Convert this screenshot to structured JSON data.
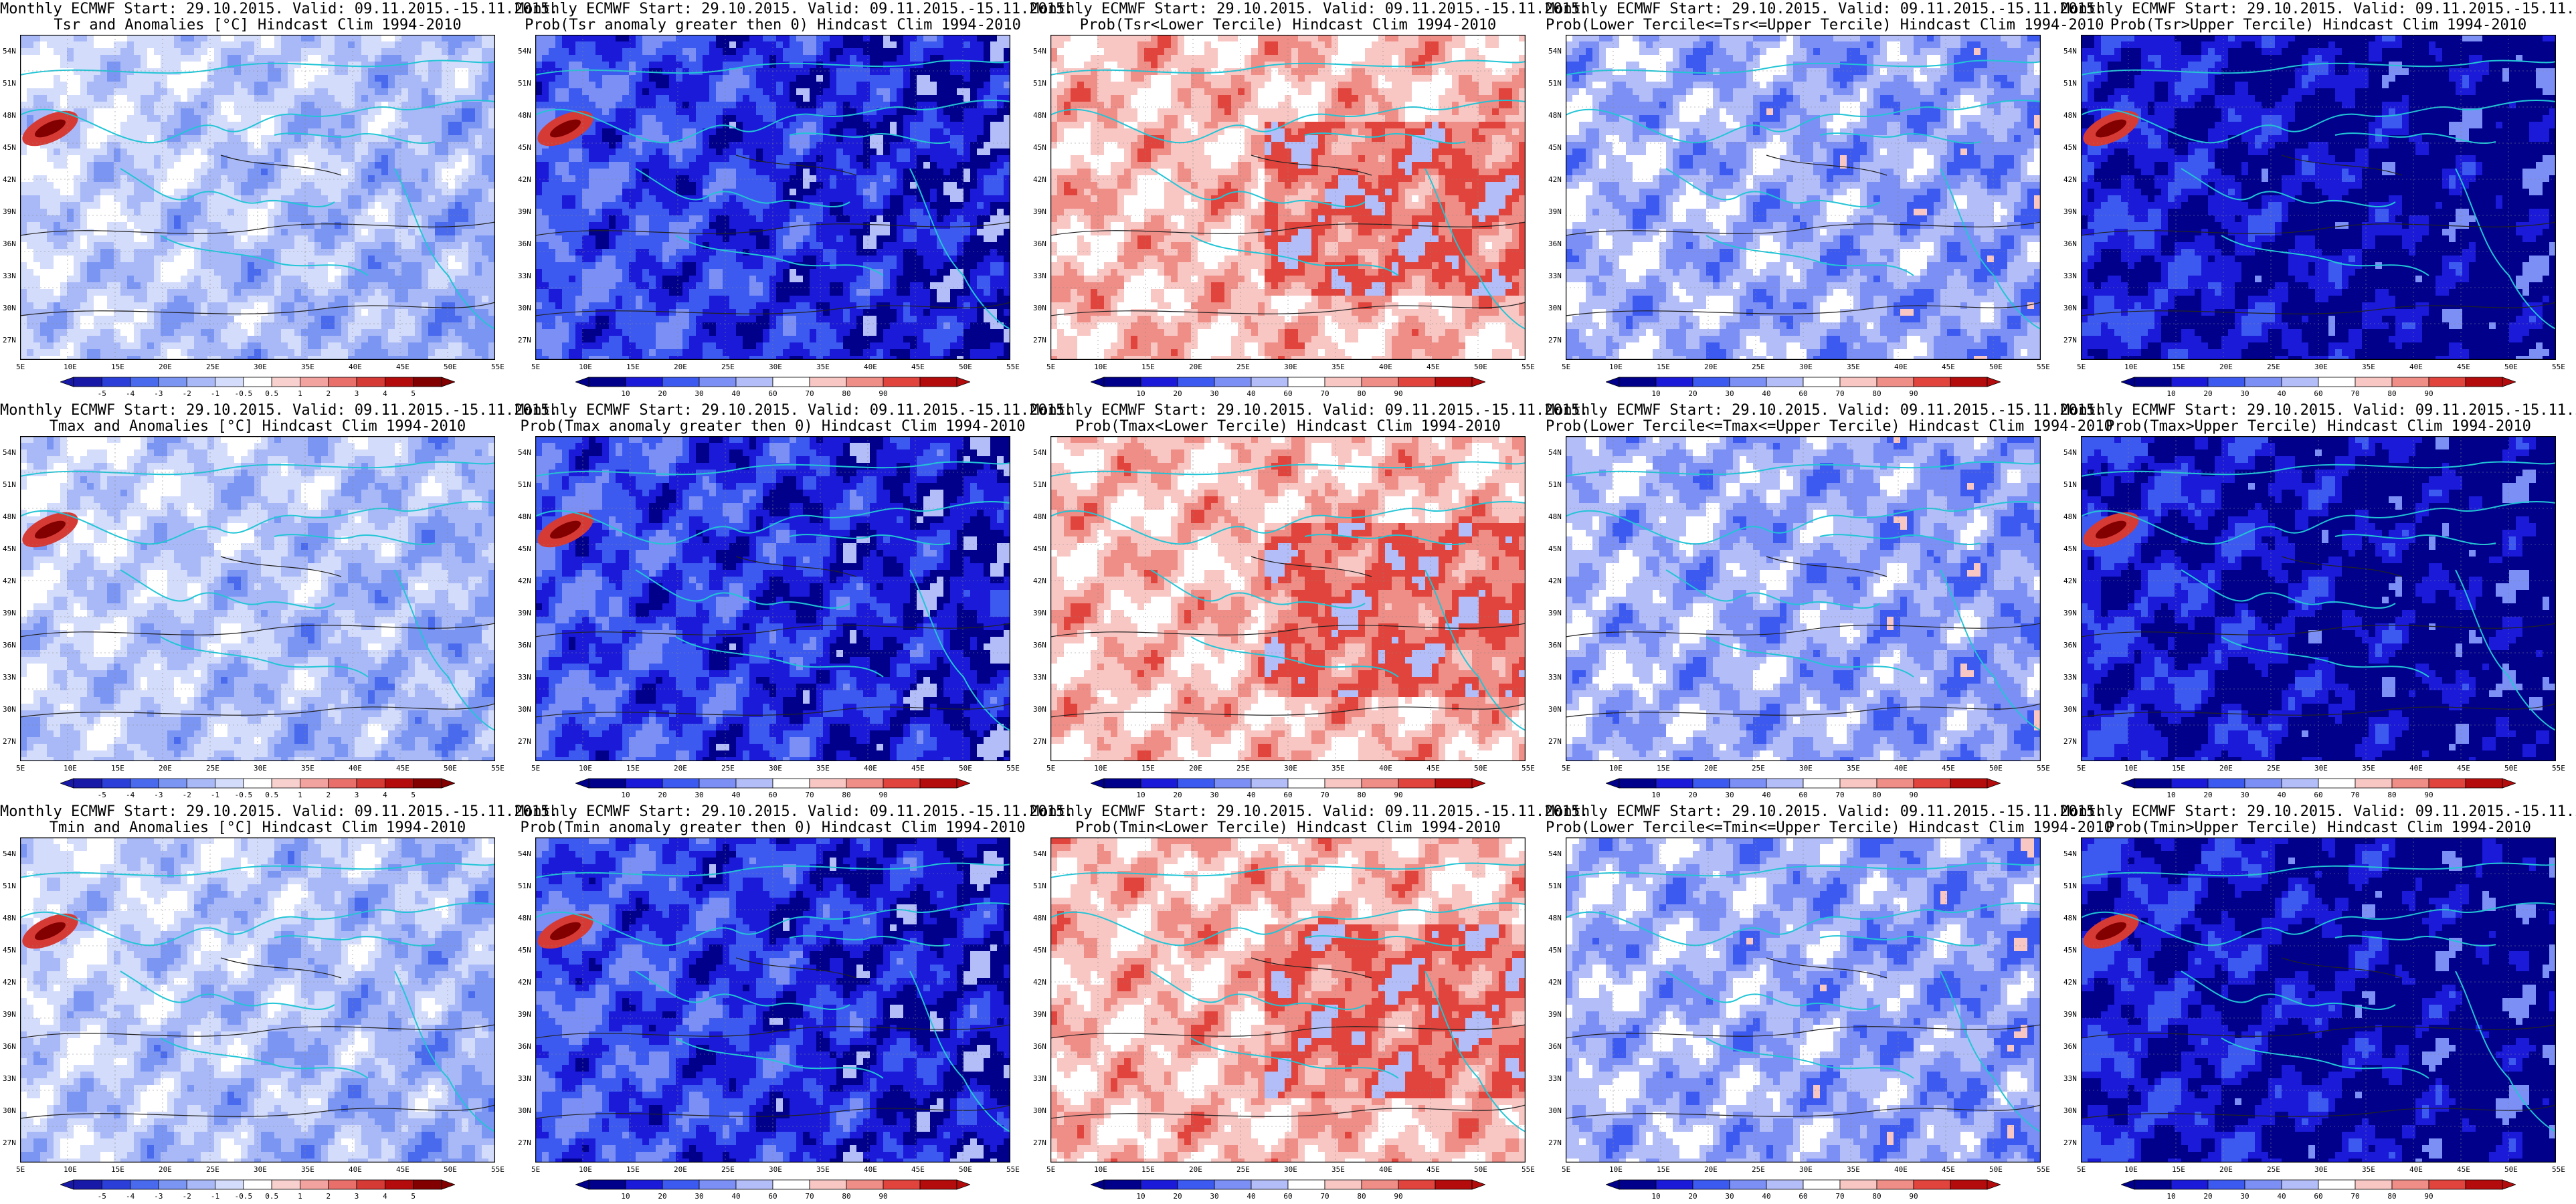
{
  "title_line1": "Monthly ECMWF Start: 29.10.2015. Valid: 09.11.2015.-15.11.2015.",
  "panels": [
    {
      "t2": "Tsr and Anomalies [°C] Hindcast Clim 1994-2010",
      "type": "anom"
    },
    {
      "t2": "Prob(Tsr anomaly greater then 0) Hindcast Clim 1994-2010",
      "type": "prob"
    },
    {
      "t2": "Prob(Tsr<Lower Tercile) Hindcast Clim 1994-2010",
      "type": "lower"
    },
    {
      "t2": "Prob(Lower Tercile<=Tsr<=Upper Tercile) Hindcast Clim 1994-2010",
      "type": "mid"
    },
    {
      "t2": "Prob(Tsr>Upper Tercile) Hindcast Clim 1994-2010",
      "type": "upper"
    },
    {
      "t2": "Tmax and Anomalies [°C] Hindcast Clim 1994-2010",
      "type": "anom"
    },
    {
      "t2": "Prob(Tmax anomaly greater then 0) Hindcast Clim 1994-2010",
      "type": "prob"
    },
    {
      "t2": "Prob(Tmax<Lower Tercile) Hindcast Clim 1994-2010",
      "type": "lower"
    },
    {
      "t2": "Prob(Lower Tercile<=Tmax<=Upper Tercile) Hindcast Clim 1994-2010",
      "type": "mid"
    },
    {
      "t2": "Prob(Tmax>Upper Tercile) Hindcast Clim 1994-2010",
      "type": "upper"
    },
    {
      "t2": "Tmin and Anomalies [°C] Hindcast Clim 1994-2010",
      "type": "anom"
    },
    {
      "t2": "Prob(Tmin anomaly greater then 0) Hindcast Clim 1994-2010",
      "type": "prob"
    },
    {
      "t2": "Prob(Tmin<Lower Tercile) Hindcast Clim 1994-2010",
      "type": "lower"
    },
    {
      "t2": "Prob(Lower Tercile<=Tmin<=Upper Tercile) Hindcast Clim 1994-2010",
      "type": "mid"
    },
    {
      "t2": "Prob(Tmin>Upper Tercile) Hindcast Clim 1994-2010",
      "type": "upper"
    }
  ],
  "lat_labels": [
    "54N",
    "51N",
    "48N",
    "45N",
    "42N",
    "39N",
    "36N",
    "33N",
    "30N",
    "27N"
  ],
  "lon_labels": [
    "5E",
    "10E",
    "15E",
    "20E",
    "25E",
    "30E",
    "35E",
    "40E",
    "45E",
    "50E",
    "55E"
  ],
  "anom_ticks": [
    "-5",
    "-4",
    "-3",
    "-2",
    "-1",
    "-0.5",
    "0.5",
    "1",
    "2",
    "3",
    "4",
    "5"
  ],
  "prob_ticks": [
    "10",
    "20",
    "30",
    "40",
    "60",
    "70",
    "80",
    "90"
  ],
  "anom_colors": [
    "#1919a8",
    "#2b3fd8",
    "#4a6aee",
    "#7b95f3",
    "#a9b9f7",
    "#d3dcfa",
    "#ffffff",
    "#f8d1cf",
    "#f2a3a0",
    "#e86f6a",
    "#d63a35",
    "#b40c0c",
    "#820000"
  ],
  "prob_colors": [
    "#00008b",
    "#1a1ad8",
    "#3d5af0",
    "#7b8ff5",
    "#b3bdf8",
    "#ffffff",
    "#f8c7c4",
    "#ef8d87",
    "#e0443c",
    "#b40c0c"
  ]
}
